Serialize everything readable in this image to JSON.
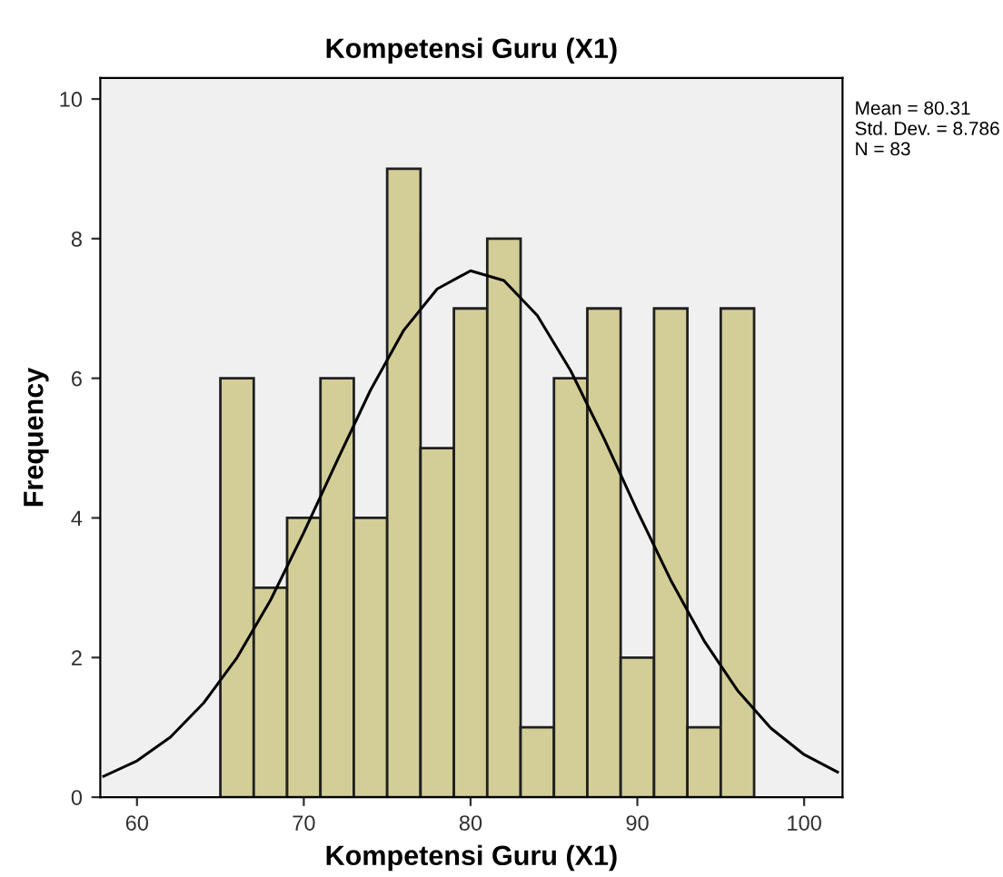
{
  "chart_data": {
    "type": "histogram",
    "title": "Kompetensi Guru (X1)",
    "xlabel": "Kompetensi Guru (X1)",
    "ylabel": "Frequency",
    "bins": [
      65,
      67,
      69,
      71,
      73,
      75,
      77,
      79,
      81,
      83,
      85,
      87,
      89,
      91,
      93,
      95,
      97
    ],
    "series": [
      {
        "type": "histogram",
        "color": "#d3ce97",
        "values": [
          6,
          3,
          4,
          6,
          4,
          9,
          5,
          7,
          8,
          1,
          6,
          7,
          2,
          7,
          1,
          7
        ]
      },
      {
        "type": "line",
        "color": "#000000",
        "x": [
          58,
          60,
          62,
          64,
          66,
          68,
          70,
          72,
          74,
          76,
          78,
          80,
          82,
          84,
          86,
          88,
          90,
          92,
          94,
          96,
          98,
          100,
          102
        ],
        "values": [
          0.3,
          0.52,
          0.86,
          1.35,
          2.0,
          2.82,
          3.79,
          4.82,
          5.83,
          6.69,
          7.28,
          7.54,
          7.4,
          6.9,
          6.11,
          5.14,
          4.1,
          3.11,
          2.24,
          1.53,
          0.99,
          0.61,
          0.36
        ]
      }
    ],
    "xlim": [
      57.8,
      102.3
    ],
    "ylim": [
      0,
      10.3
    ],
    "xticks": [
      60,
      70,
      80,
      90,
      100
    ],
    "yticks": [
      0,
      2,
      4,
      6,
      8,
      10
    ],
    "grid": false,
    "legend": false,
    "annotations": [
      "Mean = 80.31\nStd. Dev. = 8.786\nN = 83"
    ]
  }
}
